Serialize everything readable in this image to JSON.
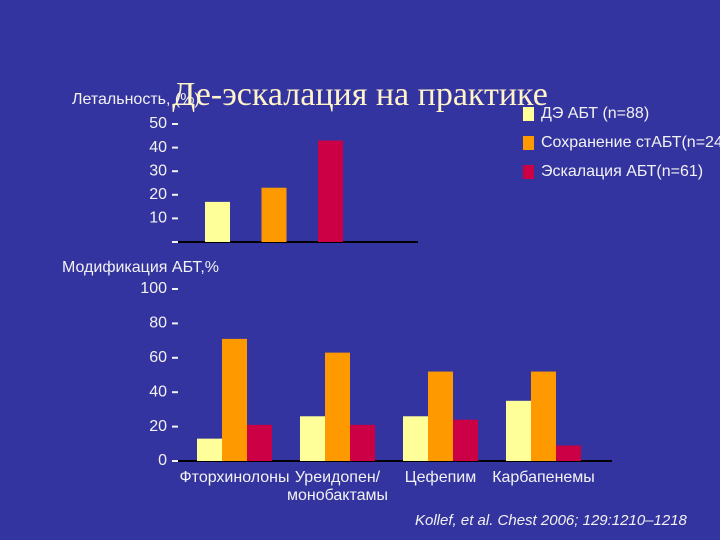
{
  "title": "Де-эскалация на практике",
  "citation": "Kollef, et al. Chest 2006; 129:1210–1218",
  "chart_data": [
    {
      "type": "bar",
      "y_label": "Летальность, (%)",
      "categories": [
        null
      ],
      "series": [
        {
          "name": "ДЭ АБТ (n=88)",
          "color": "#ffff99",
          "values": [
            17
          ]
        },
        {
          "name": "Сохранение стАБТ(n=24",
          "color": "#ff9900",
          "values": [
            23
          ]
        },
        {
          "name": "Эскалация АБТ(n=61)",
          "color": "#cc0044",
          "values": [
            43
          ]
        }
      ],
      "ylim": [
        0,
        50
      ],
      "yticks": [
        10,
        20,
        30,
        40,
        50
      ],
      "legend": "top-right"
    },
    {
      "type": "bar",
      "y_label": "Модификация АБТ,%",
      "categories": [
        "Фторхинолоны",
        "Уреидопен/\nмонобактамы",
        "Цефепим",
        "Карбапенемы"
      ],
      "series": [
        {
          "color": "#ffff99",
          "values": [
            13,
            26,
            26,
            35
          ]
        },
        {
          "color": "#ff9900",
          "values": [
            71,
            63,
            52,
            52
          ]
        },
        {
          "color": "#cc0044",
          "values": [
            21,
            21,
            24,
            9
          ]
        }
      ],
      "ylim": [
        0,
        100
      ],
      "yticks": [
        0,
        20,
        40,
        60,
        80,
        100
      ]
    }
  ]
}
